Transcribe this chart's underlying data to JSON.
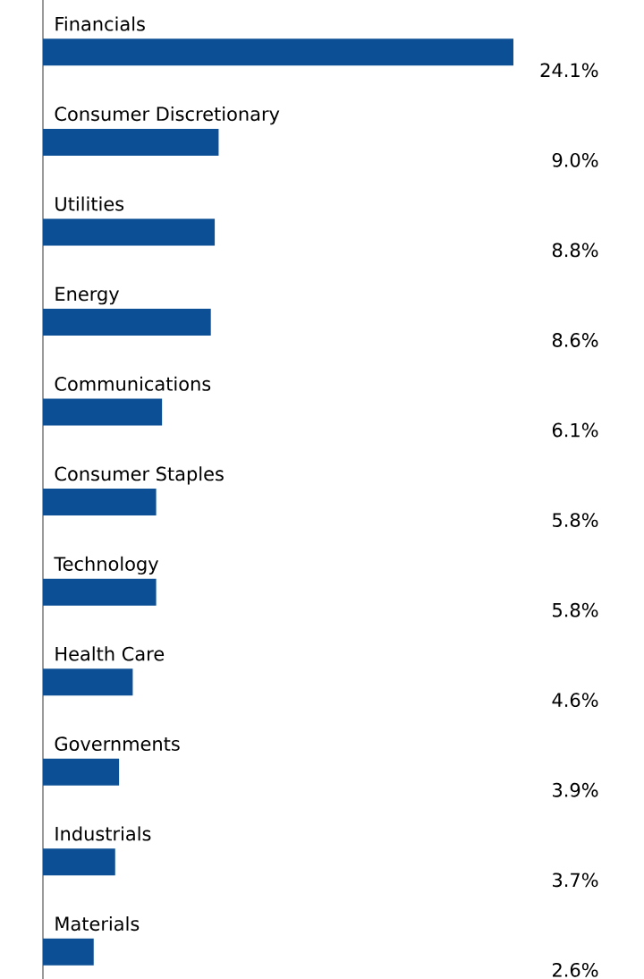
{
  "chart_data": {
    "type": "bar",
    "orientation": "horizontal",
    "color": "#0c4f94",
    "categories": [
      "Financials",
      "Consumer Discretionary",
      "Utilities",
      "Energy",
      "Communications",
      "Consumer Staples",
      "Technology",
      "Health Care",
      "Governments",
      "Industrials",
      "Materials"
    ],
    "values": [
      24.1,
      9.0,
      8.8,
      8.6,
      6.1,
      5.8,
      5.8,
      4.6,
      3.9,
      3.7,
      2.6
    ],
    "value_labels": [
      "24.1%",
      "9.0%",
      "8.8%",
      "8.6%",
      "6.1%",
      "5.8%",
      "5.8%",
      "4.6%",
      "3.9%",
      "3.7%",
      "2.6%"
    ]
  }
}
